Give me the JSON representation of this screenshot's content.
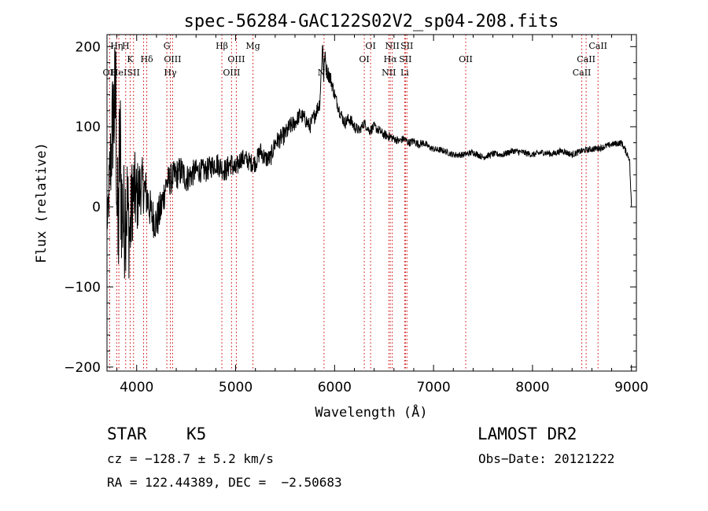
{
  "chart_data": {
    "type": "line",
    "title": "spec-56284-GAC122S02V2_sp04-208.fits",
    "xlabel": "Wavelength (Å)",
    "ylabel": "Flux (relative)",
    "xlim": [
      3700,
      9050
    ],
    "ylim": [
      -205,
      215
    ],
    "x_ticks": [
      4000,
      5000,
      6000,
      7000,
      8000,
      9000
    ],
    "y_ticks": [
      -200,
      -100,
      0,
      100,
      200
    ],
    "x_tick_labels": [
      "4000",
      "5000",
      "6000",
      "7000",
      "8000",
      "9000"
    ],
    "y_tick_labels": [
      "−200",
      "−100",
      "0",
      "100",
      "200"
    ],
    "grid": false,
    "series": [
      {
        "x": [
          3700,
          3730,
          3760,
          3790,
          3810,
          3830,
          3850,
          3870,
          3900,
          3930,
          3960,
          4000,
          4050,
          4100,
          4150,
          4200,
          4250,
          4300,
          4350,
          4400,
          4450,
          4500,
          4550,
          4600,
          4650,
          4700,
          4750,
          4800,
          4850,
          4900,
          4950,
          5000,
          5050,
          5100,
          5150,
          5200,
          5250,
          5300,
          5350,
          5400,
          5450,
          5500,
          5550,
          5600,
          5650,
          5700,
          5750,
          5800,
          5850,
          5880,
          5890,
          5900,
          5920,
          5940,
          5960,
          6000,
          6050,
          6100,
          6150,
          6200,
          6250,
          6300,
          6350,
          6400,
          6450,
          6500,
          6550,
          6600,
          6650,
          6700,
          6750,
          6800,
          6850,
          6900,
          6950,
          7000,
          7100,
          7200,
          7300,
          7400,
          7500,
          7600,
          7700,
          7800,
          7900,
          8000,
          8100,
          8200,
          8300,
          8400,
          8500,
          8600,
          8700,
          8800,
          8900,
          8980,
          9000
        ],
        "y": [
          -30,
          40,
          110,
          130,
          -60,
          80,
          0,
          -20,
          10,
          -40,
          20,
          10,
          30,
          15,
          -10,
          -20,
          0,
          30,
          35,
          40,
          45,
          35,
          40,
          45,
          45,
          45,
          50,
          55,
          50,
          45,
          55,
          45,
          60,
          60,
          55,
          55,
          70,
          60,
          60,
          80,
          85,
          90,
          100,
          105,
          115,
          110,
          100,
          115,
          130,
          205,
          160,
          190,
          170,
          165,
          160,
          140,
          120,
          105,
          110,
          100,
          95,
          105,
          95,
          100,
          95,
          90,
          88,
          85,
          82,
          85,
          80,
          82,
          78,
          80,
          75,
          72,
          70,
          65,
          65,
          68,
          62,
          66,
          65,
          70,
          68,
          65,
          68,
          66,
          70,
          65,
          70,
          72,
          74,
          78,
          80,
          60,
          0
        ],
        "noise": [
          5,
          60,
          80,
          100,
          110,
          110,
          90,
          80,
          80,
          60,
          60,
          50,
          35,
          30,
          25,
          25,
          25,
          20,
          20,
          20,
          20,
          18,
          18,
          15,
          15,
          15,
          15,
          15,
          15,
          15,
          15,
          15,
          12,
          12,
          12,
          12,
          12,
          12,
          12,
          12,
          12,
          12,
          12,
          10,
          10,
          10,
          10,
          10,
          10,
          10,
          10,
          10,
          10,
          10,
          10,
          8,
          8,
          8,
          8,
          8,
          6,
          6,
          6,
          6,
          6,
          6,
          6,
          5,
          5,
          5,
          5,
          5,
          5,
          5,
          4,
          4,
          4,
          4,
          4,
          4,
          4,
          4,
          4,
          4,
          4,
          4,
          4,
          4,
          4,
          4,
          4,
          4,
          4,
          4,
          4,
          4,
          4
        ]
      }
    ],
    "lines": [
      {
        "wl": 3727,
        "row": 2,
        "label": "OII"
      },
      {
        "wl": 3798,
        "row": 0,
        "label": "Hη"
      },
      {
        "wl": 3820,
        "row": 2,
        "label": "HeI"
      },
      {
        "wl": 3889,
        "row": 0,
        "label": "H"
      },
      {
        "wl": 3934,
        "row": 1,
        "label": "K"
      },
      {
        "wl": 3968,
        "row": 2,
        "label": "SII"
      },
      {
        "wl": 4102,
        "row": 1,
        "label": "Hδ"
      },
      {
        "wl": 4070,
        "row": 2,
        "label": ""
      },
      {
        "wl": 4305,
        "row": 0,
        "label": "G"
      },
      {
        "wl": 4340,
        "row": 2,
        "label": "Hγ"
      },
      {
        "wl": 4363,
        "row": 1,
        "label": "OIII"
      },
      {
        "wl": 4861,
        "row": 0,
        "label": "Hβ"
      },
      {
        "wl": 4959,
        "row": 2,
        "label": "OIII"
      },
      {
        "wl": 5007,
        "row": 1,
        "label": "OIII"
      },
      {
        "wl": 5175,
        "row": 0,
        "label": "Mg"
      },
      {
        "wl": 5893,
        "row": 2,
        "label": "Na"
      },
      {
        "wl": 6300,
        "row": 1,
        "label": "OI"
      },
      {
        "wl": 6364,
        "row": 0,
        "label": "OI"
      },
      {
        "wl": 6548,
        "row": 2,
        "label": "NII"
      },
      {
        "wl": 6563,
        "row": 1,
        "label": "Hα"
      },
      {
        "wl": 6583,
        "row": 0,
        "label": "NII"
      },
      {
        "wl": 6716,
        "row": 1,
        "label": "SII"
      },
      {
        "wl": 6731,
        "row": 0,
        "label": "SII"
      },
      {
        "wl": 6708,
        "row": 2,
        "label": "Li"
      },
      {
        "wl": 7325,
        "row": 1,
        "label": "OII"
      },
      {
        "wl": 8498,
        "row": 2,
        "label": "CaII"
      },
      {
        "wl": 8542,
        "row": 1,
        "label": "CaII"
      },
      {
        "wl": 8662,
        "row": 0,
        "label": "CaII"
      }
    ],
    "line_color": "#cc0000",
    "data_color": "#000000"
  },
  "info": {
    "object_class": "STAR",
    "subclass": "K5",
    "survey": "LAMOST DR2",
    "cz": "cz = −128.7 ± 5.2 km/s",
    "obs_date": "Obs−Date: 20121222",
    "radec": "RA = 122.44389, DEC =  −2.50683"
  }
}
